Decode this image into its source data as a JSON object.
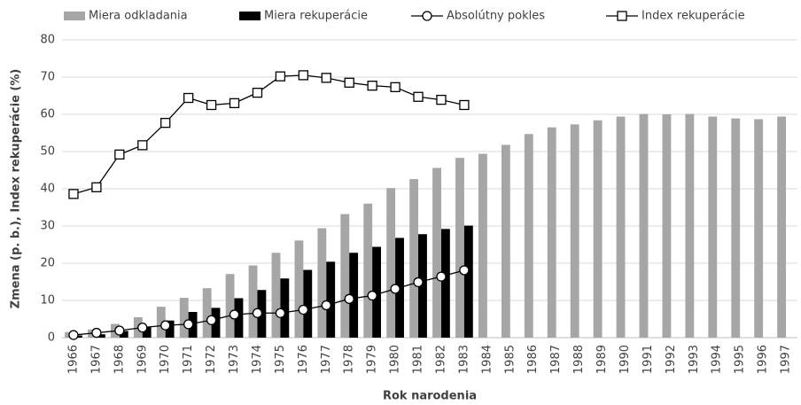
{
  "chart_data": {
    "type": "combo",
    "x_label": "Rok narodenia",
    "y_label": "Zmena (p. b.), Index rekuperácie (%)",
    "categories": [
      "1966",
      "1967",
      "1968",
      "1969",
      "1970",
      "1971",
      "1972",
      "1973",
      "1974",
      "1975",
      "1976",
      "1977",
      "1978",
      "1979",
      "1980",
      "1981",
      "1982",
      "1983",
      "1984",
      "1985",
      "1986",
      "1987",
      "1988",
      "1989",
      "1990",
      "1991",
      "1992",
      "1993",
      "1994",
      "1995",
      "1996",
      "1997"
    ],
    "series": [
      {
        "name": "Miera odkladania",
        "kind": "bar",
        "color": "#a6a6a6",
        "values": [
          1.5,
          2.2,
          3.7,
          5.5,
          8.3,
          10.7,
          13.3,
          17.1,
          19.4,
          22.8,
          26.1,
          29.4,
          33.2,
          36.0,
          40.2,
          42.6,
          45.6,
          48.3,
          49.4,
          51.8,
          54.7,
          56.5,
          57.3,
          58.4,
          59.4,
          60.1,
          60.0,
          60.1,
          59.4,
          58.9,
          58.7,
          59.4
        ]
      },
      {
        "name": "Miera rekuperácie",
        "kind": "bar",
        "color": "#000000",
        "values": [
          0.6,
          0.9,
          1.8,
          2.8,
          4.6,
          6.9,
          8.0,
          10.6,
          12.8,
          15.9,
          18.2,
          20.4,
          22.8,
          24.4,
          26.8,
          27.8,
          29.2,
          30.1,
          null,
          null,
          null,
          null,
          null,
          null,
          null,
          null,
          null,
          null,
          null,
          null,
          null,
          null
        ]
      },
      {
        "name": "Absolútny pokles",
        "kind": "line",
        "marker": "circle",
        "color": "#000000",
        "values": [
          0.7,
          1.3,
          1.9,
          2.7,
          3.3,
          3.6,
          4.7,
          6.2,
          6.6,
          6.6,
          7.5,
          8.7,
          10.4,
          11.3,
          13.1,
          14.9,
          16.4,
          18.1,
          null,
          null,
          null,
          null,
          null,
          null,
          null,
          null,
          null,
          null,
          null,
          null,
          null,
          null
        ]
      },
      {
        "name": "Index rekuperácie",
        "kind": "line",
        "marker": "square",
        "color": "#000000",
        "values": [
          38.6,
          40.4,
          49.2,
          51.7,
          57.7,
          64.4,
          62.5,
          63.0,
          65.8,
          70.2,
          70.5,
          69.8,
          68.5,
          67.7,
          67.3,
          64.7,
          63.9,
          62.5,
          null,
          null,
          null,
          null,
          null,
          null,
          null,
          null,
          null,
          null,
          null,
          null,
          null,
          null
        ]
      }
    ],
    "ylim": [
      0,
      80
    ],
    "yticks": [
      0,
      10,
      20,
      30,
      40,
      50,
      60,
      70,
      80
    ],
    "grid": true,
    "legend": "top"
  }
}
